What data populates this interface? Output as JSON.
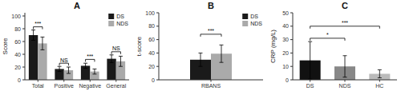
{
  "chart_data": [
    {
      "type": "bar",
      "title": "A",
      "ylabel": "Score",
      "categories": [
        "Total",
        "Positive",
        "Negative",
        "General"
      ],
      "series": [
        {
          "name": "DS",
          "color": "#1a1a1a",
          "values": [
            70,
            17,
            22,
            33
          ],
          "errors": [
            8,
            4,
            4,
            6
          ]
        },
        {
          "name": "NDS",
          "color": "#aaaaaa",
          "values": [
            57,
            15,
            13,
            29
          ],
          "errors": [
            10,
            5,
            4,
            8
          ]
        }
      ],
      "ylim": [
        0,
        105
      ],
      "yticks": [
        0,
        20,
        40,
        60,
        80,
        100
      ],
      "grid": false,
      "legend": "upper right",
      "annotations": [
        {
          "text": "***",
          "category": "Total",
          "y": 83
        },
        {
          "text": "NS",
          "category": "Positive",
          "y": 26
        },
        {
          "text": "***",
          "category": "Negative",
          "y": 32
        },
        {
          "text": "NS",
          "category": "General",
          "y": 44
        }
      ]
    },
    {
      "type": "bar",
      "title": "B",
      "ylabel": "t-score",
      "categories": [
        "RBANS"
      ],
      "series": [
        {
          "name": "DS",
          "color": "#1a1a1a",
          "values": [
            30
          ],
          "errors": [
            10
          ]
        },
        {
          "name": "NDS",
          "color": "#aaaaaa",
          "values": [
            39
          ],
          "errors": [
            13
          ]
        }
      ],
      "ylim": [
        0,
        100
      ],
      "yticks": [
        0,
        20,
        40,
        60,
        80,
        100
      ],
      "grid": false,
      "legend": "upper right",
      "annotations": [
        {
          "text": "***",
          "category": "RBANS",
          "y": 68
        }
      ]
    },
    {
      "type": "bar",
      "title": "C",
      "ylabel": "CRP (mg/L)",
      "categories": [
        "DS",
        "NDS",
        "HC"
      ],
      "values": [
        14.5,
        10,
        4.5
      ],
      "errors": [
        14,
        8,
        3
      ],
      "colors": [
        "#111111",
        "#888888",
        "#bbbbbb"
      ],
      "ylim": [
        0,
        50
      ],
      "yticks": [
        0,
        10,
        20,
        30,
        40,
        50
      ],
      "grid": false,
      "annotations": [
        {
          "text": "*",
          "from": "DS",
          "to": "NDS",
          "y": 31
        },
        {
          "text": "***",
          "from": "DS",
          "to": "HC",
          "y": 40
        }
      ]
    }
  ]
}
